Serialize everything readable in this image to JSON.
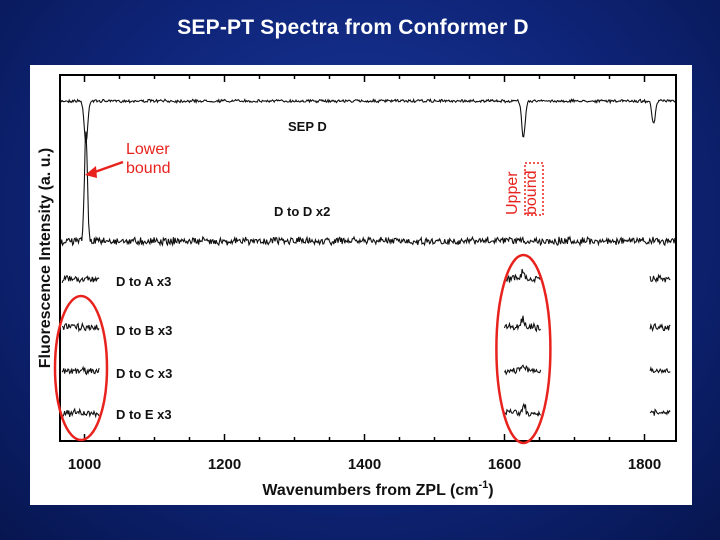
{
  "title": "SEP-PT Spectra from Conformer D",
  "chart_data": {
    "type": "line",
    "xlabel": "Wavenumbers from ZPL (cm",
    "xlabel_sup": "-1",
    "xlabel_close": ")",
    "ylabel": "Fluorescence Intensity (a. u.)",
    "xlim": [
      965,
      1845
    ],
    "xticks": [
      1000,
      1200,
      1400,
      1600,
      1800
    ],
    "xtick_labels": [
      "1000",
      "1200",
      "1400",
      "1600",
      "1800"
    ],
    "series": [
      {
        "name": "SEP D",
        "x_range": [
          965,
          1845
        ],
        "dips": [
          {
            "x": 1002,
            "depth": 1.0
          },
          {
            "x": 1627,
            "depth": 0.85
          },
          {
            "x": 1813,
            "depth": 0.55
          }
        ]
      },
      {
        "name": "D to D x2",
        "x_range": [
          965,
          1845
        ],
        "peaks": [
          {
            "x": 1002,
            "height": 1.0
          }
        ]
      },
      {
        "name": "D to A x3",
        "segments": [
          [
            968,
            1022
          ],
          [
            1600,
            1652
          ],
          [
            1808,
            1838
          ]
        ]
      },
      {
        "name": "D to B x3",
        "segments": [
          [
            968,
            1022
          ],
          [
            1600,
            1652
          ],
          [
            1808,
            1838
          ]
        ]
      },
      {
        "name": "D to C x3",
        "segments": [
          [
            968,
            1022
          ],
          [
            1600,
            1652
          ],
          [
            1808,
            1838
          ]
        ]
      },
      {
        "name": "D to E x3",
        "segments": [
          [
            968,
            1022
          ],
          [
            1600,
            1652
          ],
          [
            1808,
            1838
          ]
        ]
      }
    ],
    "annotations": {
      "lower_bound": "Lower\nbound",
      "upper_bound": "Upper\nbound"
    },
    "grid": false,
    "legend": "none"
  },
  "colors": {
    "trace": "#111111",
    "highlight": "#e8231e",
    "background": "#0e2478"
  }
}
